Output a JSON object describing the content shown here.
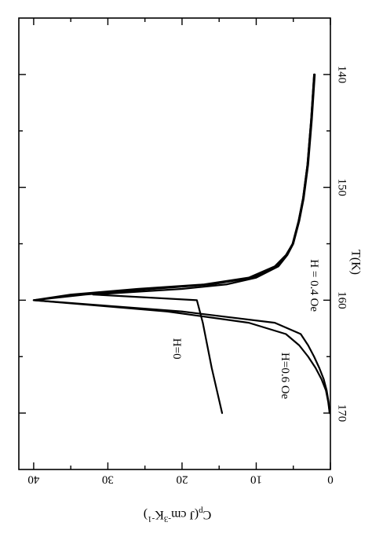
{
  "chart_data": {
    "type": "line",
    "rotation": "page rotated 90 degrees clockwise (x-axis along right edge, y-axis along bottom edge)",
    "title": "",
    "xlabel": "T(K)",
    "ylabel_main": "C",
    "ylabel_sub": "p",
    "ylabel_rest": "(J cm",
    "ylabel_sup1": "-3",
    "ylabel_mid": "K",
    "ylabel_sup2": "-1",
    "ylabel_end": ")",
    "xlim": [
      135,
      175
    ],
    "ylim": [
      0,
      42
    ],
    "x_ticks": [
      140,
      150,
      160,
      170
    ],
    "y_ticks": [
      0,
      10,
      20,
      30,
      40
    ],
    "x_tick_labels": [
      "140",
      "150",
      "160",
      "170"
    ],
    "y_tick_labels": [
      "0",
      "10",
      "20",
      "30",
      "40"
    ],
    "grid": false,
    "legend": "none",
    "series": [
      {
        "key": "h0",
        "x": [
          140,
          144,
          148,
          151,
          153,
          155,
          156,
          157,
          158,
          158.6,
          159,
          159.5,
          160,
          160.5,
          162,
          164,
          166,
          168,
          170
        ],
        "y": [
          2.1,
          2.5,
          3.0,
          3.6,
          4.2,
          5.0,
          5.8,
          7.0,
          10.0,
          14.0,
          20.0,
          32.0,
          18.0,
          17.8,
          17.2,
          16.6,
          16.0,
          15.3,
          14.6
        ]
      },
      {
        "key": "h04",
        "x": [
          140,
          144,
          148,
          151,
          153,
          155,
          156,
          157,
          158,
          158.6,
          159,
          159.5,
          160,
          160.5,
          161,
          162,
          163,
          164,
          165,
          166,
          167,
          168,
          169,
          170
        ],
        "y": [
          2.2,
          2.6,
          3.1,
          3.7,
          4.3,
          5.1,
          6.0,
          7.5,
          11.0,
          17.0,
          26.0,
          35.0,
          40.0,
          30.0,
          20.0,
          7.5,
          4.0,
          3.0,
          2.2,
          1.5,
          0.9,
          0.5,
          0.25,
          0.1
        ]
      },
      {
        "key": "h06",
        "x": [
          140,
          144,
          148,
          151,
          153,
          155,
          156,
          157,
          158,
          158.6,
          159,
          159.5,
          160,
          160.5,
          161,
          162,
          163,
          164,
          165,
          166,
          167,
          168,
          169,
          170
        ],
        "y": [
          2.2,
          2.6,
          3.1,
          3.7,
          4.3,
          5.1,
          5.9,
          7.2,
          10.5,
          16.0,
          24.0,
          33.0,
          40.0,
          31.0,
          22.0,
          11.0,
          6.0,
          4.2,
          3.0,
          2.0,
          1.2,
          0.6,
          0.3,
          0.1
        ]
      }
    ],
    "annotations": [
      {
        "label": "H=0",
        "x": 164.3,
        "y": 20.8
      },
      {
        "label": "H=0.6 Oe",
        "x": 166.7,
        "y": 6.2
      },
      {
        "label": "H = 0.4 Oe",
        "x": 158.7,
        "y": 2.3
      }
    ]
  }
}
